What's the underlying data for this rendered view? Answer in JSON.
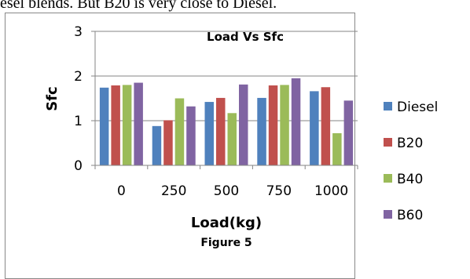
{
  "page": {
    "body_text": "esel blends. But B20 is very close to Diesel."
  },
  "chart_data": {
    "type": "bar",
    "title": "Load Vs Sfc",
    "xlabel": "Load(kg)",
    "ylabel": "Sfc",
    "caption": "Figure 5",
    "categories": [
      "0",
      "250",
      "500",
      "750",
      "1000"
    ],
    "ylim": [
      0,
      3
    ],
    "yticks": [
      0,
      1,
      2,
      3
    ],
    "grid": true,
    "legend_position": "right",
    "series": [
      {
        "name": "Diesel",
        "color": "#4F81BD",
        "values": [
          1.74,
          0.88,
          1.42,
          1.51,
          1.66
        ]
      },
      {
        "name": "B20",
        "color": "#C0504D",
        "values": [
          1.79,
          1.01,
          1.51,
          1.79,
          1.75
        ]
      },
      {
        "name": "B40",
        "color": "#9BBB59",
        "values": [
          1.8,
          1.5,
          1.17,
          1.8,
          0.72
        ]
      },
      {
        "name": "B60",
        "color": "#8064A2",
        "values": [
          1.85,
          1.32,
          1.81,
          1.95,
          1.45
        ]
      }
    ]
  }
}
